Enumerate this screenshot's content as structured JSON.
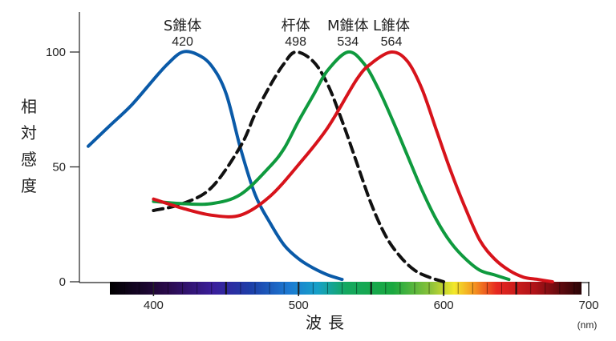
{
  "chart_data": {
    "type": "line",
    "xlabel": "波長",
    "ylabel": "相対感度",
    "x_unit": "(nm)",
    "xlim": [
      355,
      700
    ],
    "ylim": [
      0,
      100
    ],
    "x_ticks": [
      400,
      500,
      600,
      700
    ],
    "y_ticks": [
      0,
      50,
      100
    ],
    "series": [
      {
        "name": "S錐体",
        "peak": "420",
        "color": "#0a5aa8",
        "dash": false,
        "x": [
          355,
          370,
          385,
          400,
          410,
          420,
          430,
          440,
          450,
          460,
          470,
          480,
          490,
          500,
          510,
          520,
          530
        ],
        "y": [
          59,
          68,
          77,
          88,
          95,
          100,
          99,
          94,
          82,
          58,
          38,
          26,
          16,
          10,
          6,
          3,
          1
        ]
      },
      {
        "name": "杆体",
        "peak": "498",
        "color": "#111111",
        "dash": true,
        "x": [
          400,
          420,
          440,
          460,
          470,
          480,
          490,
          498,
          510,
          520,
          530,
          540,
          550,
          560,
          570,
          580,
          590,
          600
        ],
        "y": [
          31,
          34,
          41,
          59,
          73,
          85,
          95,
          100,
          96,
          86,
          70,
          52,
          34,
          20,
          11,
          5,
          2,
          0
        ]
      },
      {
        "name": "M錐体",
        "peak": "534",
        "color": "#0f9a3e",
        "dash": false,
        "x": [
          400,
          420,
          440,
          460,
          480,
          490,
          500,
          510,
          520,
          534,
          545,
          555,
          565,
          575,
          585,
          595,
          605,
          615,
          625,
          635,
          645
        ],
        "y": [
          35,
          34,
          34,
          38,
          50,
          58,
          70,
          81,
          92,
          100,
          95,
          84,
          70,
          55,
          40,
          27,
          17,
          10,
          5,
          3,
          1
        ]
      },
      {
        "name": "L錐体",
        "peak": "564",
        "color": "#d7131b",
        "dash": false,
        "x": [
          400,
          420,
          440,
          460,
          480,
          500,
          520,
          540,
          550,
          564,
          575,
          585,
          595,
          605,
          615,
          625,
          635,
          645,
          655,
          665,
          675
        ],
        "y": [
          36,
          32,
          29,
          29,
          37,
          51,
          67,
          88,
          95,
          100,
          96,
          84,
          66,
          48,
          32,
          18,
          10,
          5,
          2,
          1,
          0
        ]
      }
    ]
  }
}
